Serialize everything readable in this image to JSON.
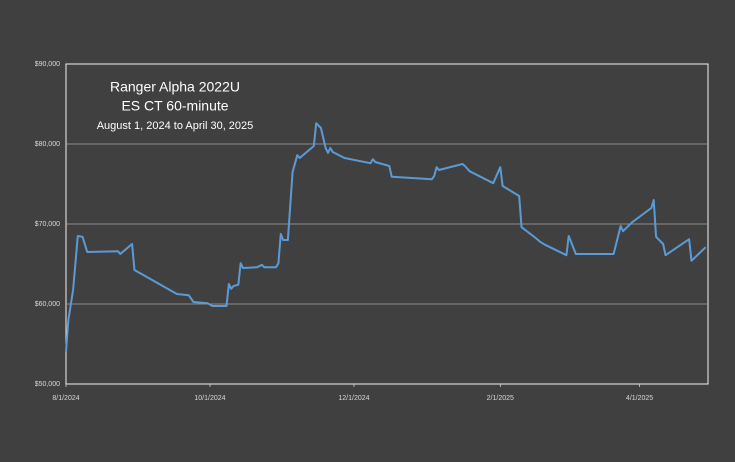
{
  "chart_data": {
    "type": "line",
    "title": "Ranger Alpha 2022U",
    "subtitle": "ES CT 60-minute",
    "annotation": "August 1, 2024 to April 30, 2025",
    "x": [
      "2024-08-01",
      "2024-08-02",
      "2024-08-04",
      "2024-08-06",
      "2024-08-08",
      "2024-08-10",
      "2024-08-23",
      "2024-08-24",
      "2024-08-29",
      "2024-08-30",
      "2024-09-17",
      "2024-09-22",
      "2024-09-24",
      "2024-09-30",
      "2024-10-02",
      "2024-10-08",
      "2024-10-09",
      "2024-10-10",
      "2024-10-11",
      "2024-10-13",
      "2024-10-14",
      "2024-10-15",
      "2024-10-21",
      "2024-10-23",
      "2024-10-24",
      "2024-10-29",
      "2024-10-30",
      "2024-10-31",
      "2024-11-01",
      "2024-11-03",
      "2024-11-05",
      "2024-11-07",
      "2024-11-08",
      "2024-11-14",
      "2024-11-15",
      "2024-11-17",
      "2024-11-19",
      "2024-11-20",
      "2024-11-21",
      "2024-11-22",
      "2024-11-27",
      "2024-12-08",
      "2024-12-09",
      "2024-12-10",
      "2024-12-16",
      "2024-12-17",
      "2025-01-03",
      "2025-01-04",
      "2025-01-05",
      "2025-01-06",
      "2025-01-16",
      "2025-01-17",
      "2025-01-19",
      "2025-01-29",
      "2025-02-01",
      "2025-02-02",
      "2025-02-09",
      "2025-02-10",
      "2025-02-16",
      "2025-02-18",
      "2025-02-20",
      "2025-03-01",
      "2025-03-02",
      "2025-03-05",
      "2025-03-21",
      "2025-03-24",
      "2025-03-25",
      "2025-03-29",
      "2025-04-06",
      "2025-04-07",
      "2025-04-08",
      "2025-04-11",
      "2025-04-12",
      "2025-04-22",
      "2025-04-23",
      "2025-04-29"
    ],
    "series": [
      {
        "color": "#5b9bd5",
        "values": [
          54000,
          58000,
          61750,
          68500,
          68400,
          66500,
          66600,
          66250,
          67500,
          64250,
          61250,
          61100,
          60250,
          60100,
          59750,
          59750,
          62500,
          61900,
          62250,
          62400,
          65100,
          64500,
          64600,
          64900,
          64600,
          64600,
          65100,
          68750,
          68000,
          68000,
          76500,
          78600,
          78250,
          79750,
          82600,
          82000,
          79500,
          78900,
          79500,
          79000,
          78250,
          77600,
          78100,
          77750,
          77250,
          75900,
          75600,
          76000,
          77100,
          76750,
          77500,
          77250,
          76600,
          75100,
          77100,
          74750,
          73500,
          69600,
          68250,
          67750,
          67400,
          66100,
          68500,
          66250,
          66250,
          69750,
          69100,
          70250,
          72000,
          73000,
          68400,
          67500,
          66100,
          68100,
          65400,
          67100
        ]
      }
    ],
    "xlim": [
      "2024-08-01",
      "2025-04-30"
    ],
    "xticks": [
      {
        "value": "2024-08-01",
        "label": "8/1/2024"
      },
      {
        "value": "2024-10-01",
        "label": "10/1/2024"
      },
      {
        "value": "2024-12-01",
        "label": "12/1/2024"
      },
      {
        "value": "2025-02-01",
        "label": "2/1/2025"
      },
      {
        "value": "2025-04-01",
        "label": "4/1/2025"
      }
    ],
    "ylim": [
      50000,
      90000
    ],
    "yticks": [
      {
        "value": 50000,
        "label": "$50,000"
      },
      {
        "value": 60000,
        "label": "$60,000"
      },
      {
        "value": 70000,
        "label": "$70,000"
      },
      {
        "value": 80000,
        "label": "$80,000"
      },
      {
        "value": 90000,
        "label": "$90,000"
      }
    ],
    "grid": true
  }
}
